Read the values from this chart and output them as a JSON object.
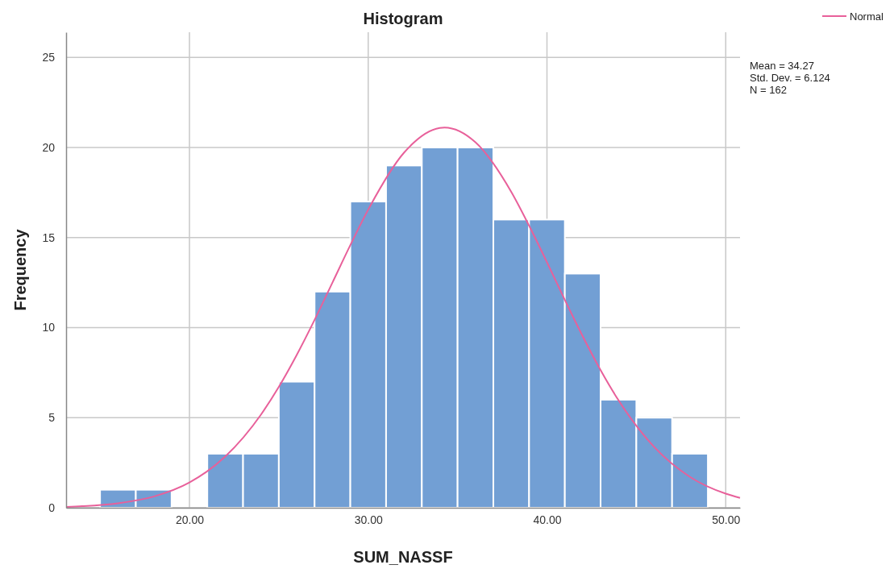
{
  "chart_data": {
    "type": "histogram",
    "title": "Histogram",
    "xlabel": "SUM_NASSF",
    "ylabel": "Frequency",
    "bins": [
      15,
      17,
      19,
      21,
      23,
      25,
      27,
      29,
      31,
      33,
      35,
      37,
      39,
      41,
      43,
      45,
      47,
      49
    ],
    "values": [
      1,
      1,
      0,
      3,
      3,
      7,
      12,
      17,
      19,
      20,
      20,
      16,
      16,
      13,
      6,
      5,
      3
    ],
    "color": "#729fd4",
    "series": [
      {
        "type": "line",
        "name": "Normal",
        "color": "#e8609a",
        "x": [
          13.1,
          14,
          16,
          18,
          20,
          22,
          24,
          25,
          26,
          27,
          28,
          29,
          30,
          32,
          34,
          34.27,
          36,
          38,
          39,
          40,
          41,
          42,
          43,
          44,
          46,
          48,
          50,
          50.8
        ],
        "values": [
          0.05,
          0.09,
          0.25,
          0.62,
          1.4,
          2.84,
          5.17,
          6.71,
          8.48,
          10.43,
          12.5,
          14.58,
          16.55,
          19.71,
          21.09,
          21.11,
          20.29,
          17.54,
          15.66,
          13.63,
          11.54,
          9.52,
          7.64,
          5.97,
          3.37,
          1.71,
          0.78,
          0.55
        ]
      }
    ],
    "xlim": [
      13.1,
      50.8
    ],
    "ylim": [
      0,
      26.4
    ],
    "xticks": [
      {
        "value": 20,
        "label": "20.00"
      },
      {
        "value": 30,
        "label": "30.00"
      },
      {
        "value": 40,
        "label": "40.00"
      },
      {
        "value": 50,
        "label": "50.00"
      }
    ],
    "yticks": [
      0,
      5,
      10,
      15,
      20,
      25
    ],
    "grid": true,
    "legend": "top right",
    "annotations": [
      "Mean = 34.27",
      "Std. Dev. = 6.124",
      "N = 162"
    ]
  }
}
